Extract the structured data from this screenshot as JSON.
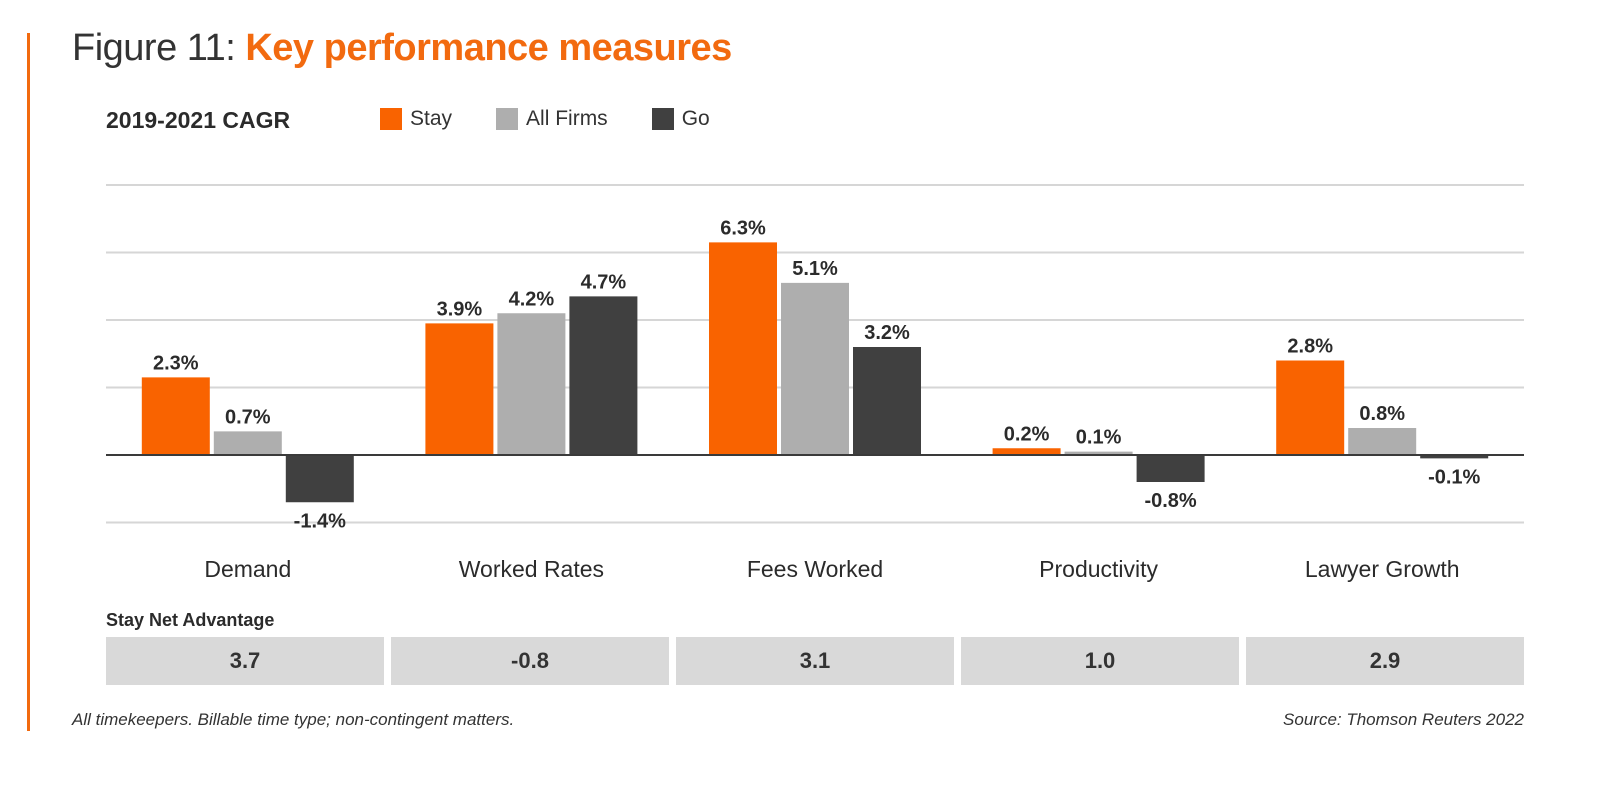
{
  "header": {
    "title_prefix": "Figure 11:",
    "title_main": "Key performance measures",
    "subtitle": "2019-2021 CAGR"
  },
  "colors": {
    "accent": "#f26a0f",
    "stay": "#f96300",
    "all_firms": "#aeaeae",
    "go": "#404040",
    "grid": "#d6d6d6",
    "axis": "#3a3a3a",
    "net_cell_bg": "#d9d9d9"
  },
  "chart_data": {
    "type": "bar",
    "title": "Key performance measures",
    "subtitle": "2019-2021 CAGR",
    "xlabel": "",
    "ylabel": "",
    "categories": [
      "Demand",
      "Worked Rates",
      "Fees Worked",
      "Productivity",
      "Lawyer Growth"
    ],
    "series": [
      {
        "name": "Stay",
        "color": "#f96300",
        "values": [
          2.3,
          3.9,
          6.3,
          0.2,
          2.8
        ],
        "labels": [
          "2.3%",
          "3.9%",
          "6.3%",
          "0.2%",
          "2.8%"
        ]
      },
      {
        "name": "All Firms",
        "color": "#aeaeae",
        "values": [
          0.7,
          4.2,
          5.1,
          0.1,
          0.8
        ],
        "labels": [
          "0.7%",
          "4.2%",
          "5.1%",
          "0.1%",
          "0.8%"
        ]
      },
      {
        "name": "Go",
        "color": "#404040",
        "values": [
          -1.4,
          4.7,
          3.2,
          -0.8,
          -0.1
        ],
        "labels": [
          "-1.4%",
          "4.7%",
          "3.2%",
          "-0.8%",
          "-0.1%"
        ]
      }
    ],
    "ylim": [
      -2,
      8
    ],
    "gridlines": [
      -2,
      2,
      4,
      6,
      8
    ],
    "grid": true,
    "y_tick_labels_shown": false,
    "legend": {
      "placement": "top-left",
      "entries": [
        "Stay",
        "All Firms",
        "Go"
      ]
    }
  },
  "net_advantage": {
    "label": "Stay Net Advantage",
    "values": [
      "3.7",
      "-0.8",
      "3.1",
      "1.0",
      "2.9"
    ]
  },
  "footer": {
    "note": "All timekeepers. Billable time type; non-contingent matters.",
    "source": "Source: Thomson Reuters 2022"
  }
}
